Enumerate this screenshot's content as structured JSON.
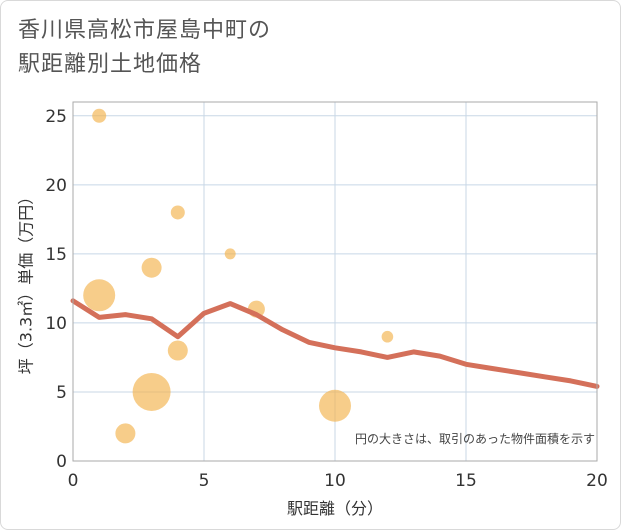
{
  "title_lines": [
    "香川県高松市屋島中町の",
    "駅距離別土地価格"
  ],
  "chart_data": {
    "type": "scatter",
    "xlabel": "駅距離（分）",
    "ylabel": "坪（3.3㎡）単価（万円）",
    "xlim": [
      0,
      20
    ],
    "ylim": [
      0,
      26
    ],
    "x_ticks": [
      0,
      5,
      10,
      15,
      20
    ],
    "y_ticks": [
      0,
      5,
      10,
      15,
      20,
      25
    ],
    "grid": true,
    "note": "円の大きさは、取引のあった物件面積を示す",
    "colors": {
      "bubble": "#f2b24b",
      "line": "#d4705a",
      "grid": "#c8d7e6",
      "plot_border": "#aaaaaa"
    },
    "bubbles": [
      {
        "x": 1,
        "y": 25,
        "size": 1
      },
      {
        "x": 1,
        "y": 12,
        "size": 4
      },
      {
        "x": 2,
        "y": 2,
        "size": 2
      },
      {
        "x": 3,
        "y": 14,
        "size": 2
      },
      {
        "x": 3,
        "y": 5,
        "size": 5
      },
      {
        "x": 4,
        "y": 18,
        "size": 1
      },
      {
        "x": 4,
        "y": 8,
        "size": 2
      },
      {
        "x": 6,
        "y": 15,
        "size": 0.5
      },
      {
        "x": 7,
        "y": 11,
        "size": 1.5
      },
      {
        "x": 10,
        "y": 4,
        "size": 4
      },
      {
        "x": 12,
        "y": 9,
        "size": 0.6
      }
    ],
    "trend": {
      "x": [
        0,
        1,
        2,
        3,
        4,
        5,
        6,
        7,
        8,
        9,
        10,
        11,
        12,
        13,
        14,
        15,
        16,
        17,
        18,
        19,
        20
      ],
      "y": [
        11.6,
        10.4,
        10.6,
        10.3,
        9.0,
        10.7,
        11.4,
        10.6,
        9.5,
        8.6,
        8.2,
        7.9,
        7.5,
        7.9,
        7.6,
        7.0,
        6.7,
        6.4,
        6.1,
        5.8,
        5.4
      ]
    }
  }
}
